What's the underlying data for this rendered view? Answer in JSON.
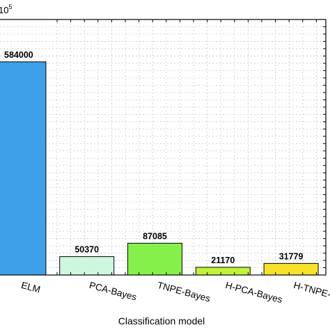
{
  "chart_data": {
    "type": "bar",
    "categories": [
      "ELM",
      "PCA-Bayes",
      "TNPE-Bayes",
      "H-PCA-Bayes",
      "H-TNPE-Bayes"
    ],
    "values": [
      584000,
      50370,
      87085,
      21170,
      31779
    ],
    "value_labels": [
      "584000",
      "50370",
      "87085",
      "21170",
      "31779"
    ],
    "colors": [
      "#3da0e8",
      "#cdf7dd",
      "#86f04a",
      "#c0f23a",
      "#f7e12a"
    ],
    "xlabel": "Classification model",
    "ylabel": "",
    "axis_exponent_prefix": "10",
    "axis_exponent_power": "5",
    "ylim": [
      0,
      700000
    ],
    "grid": true
  }
}
